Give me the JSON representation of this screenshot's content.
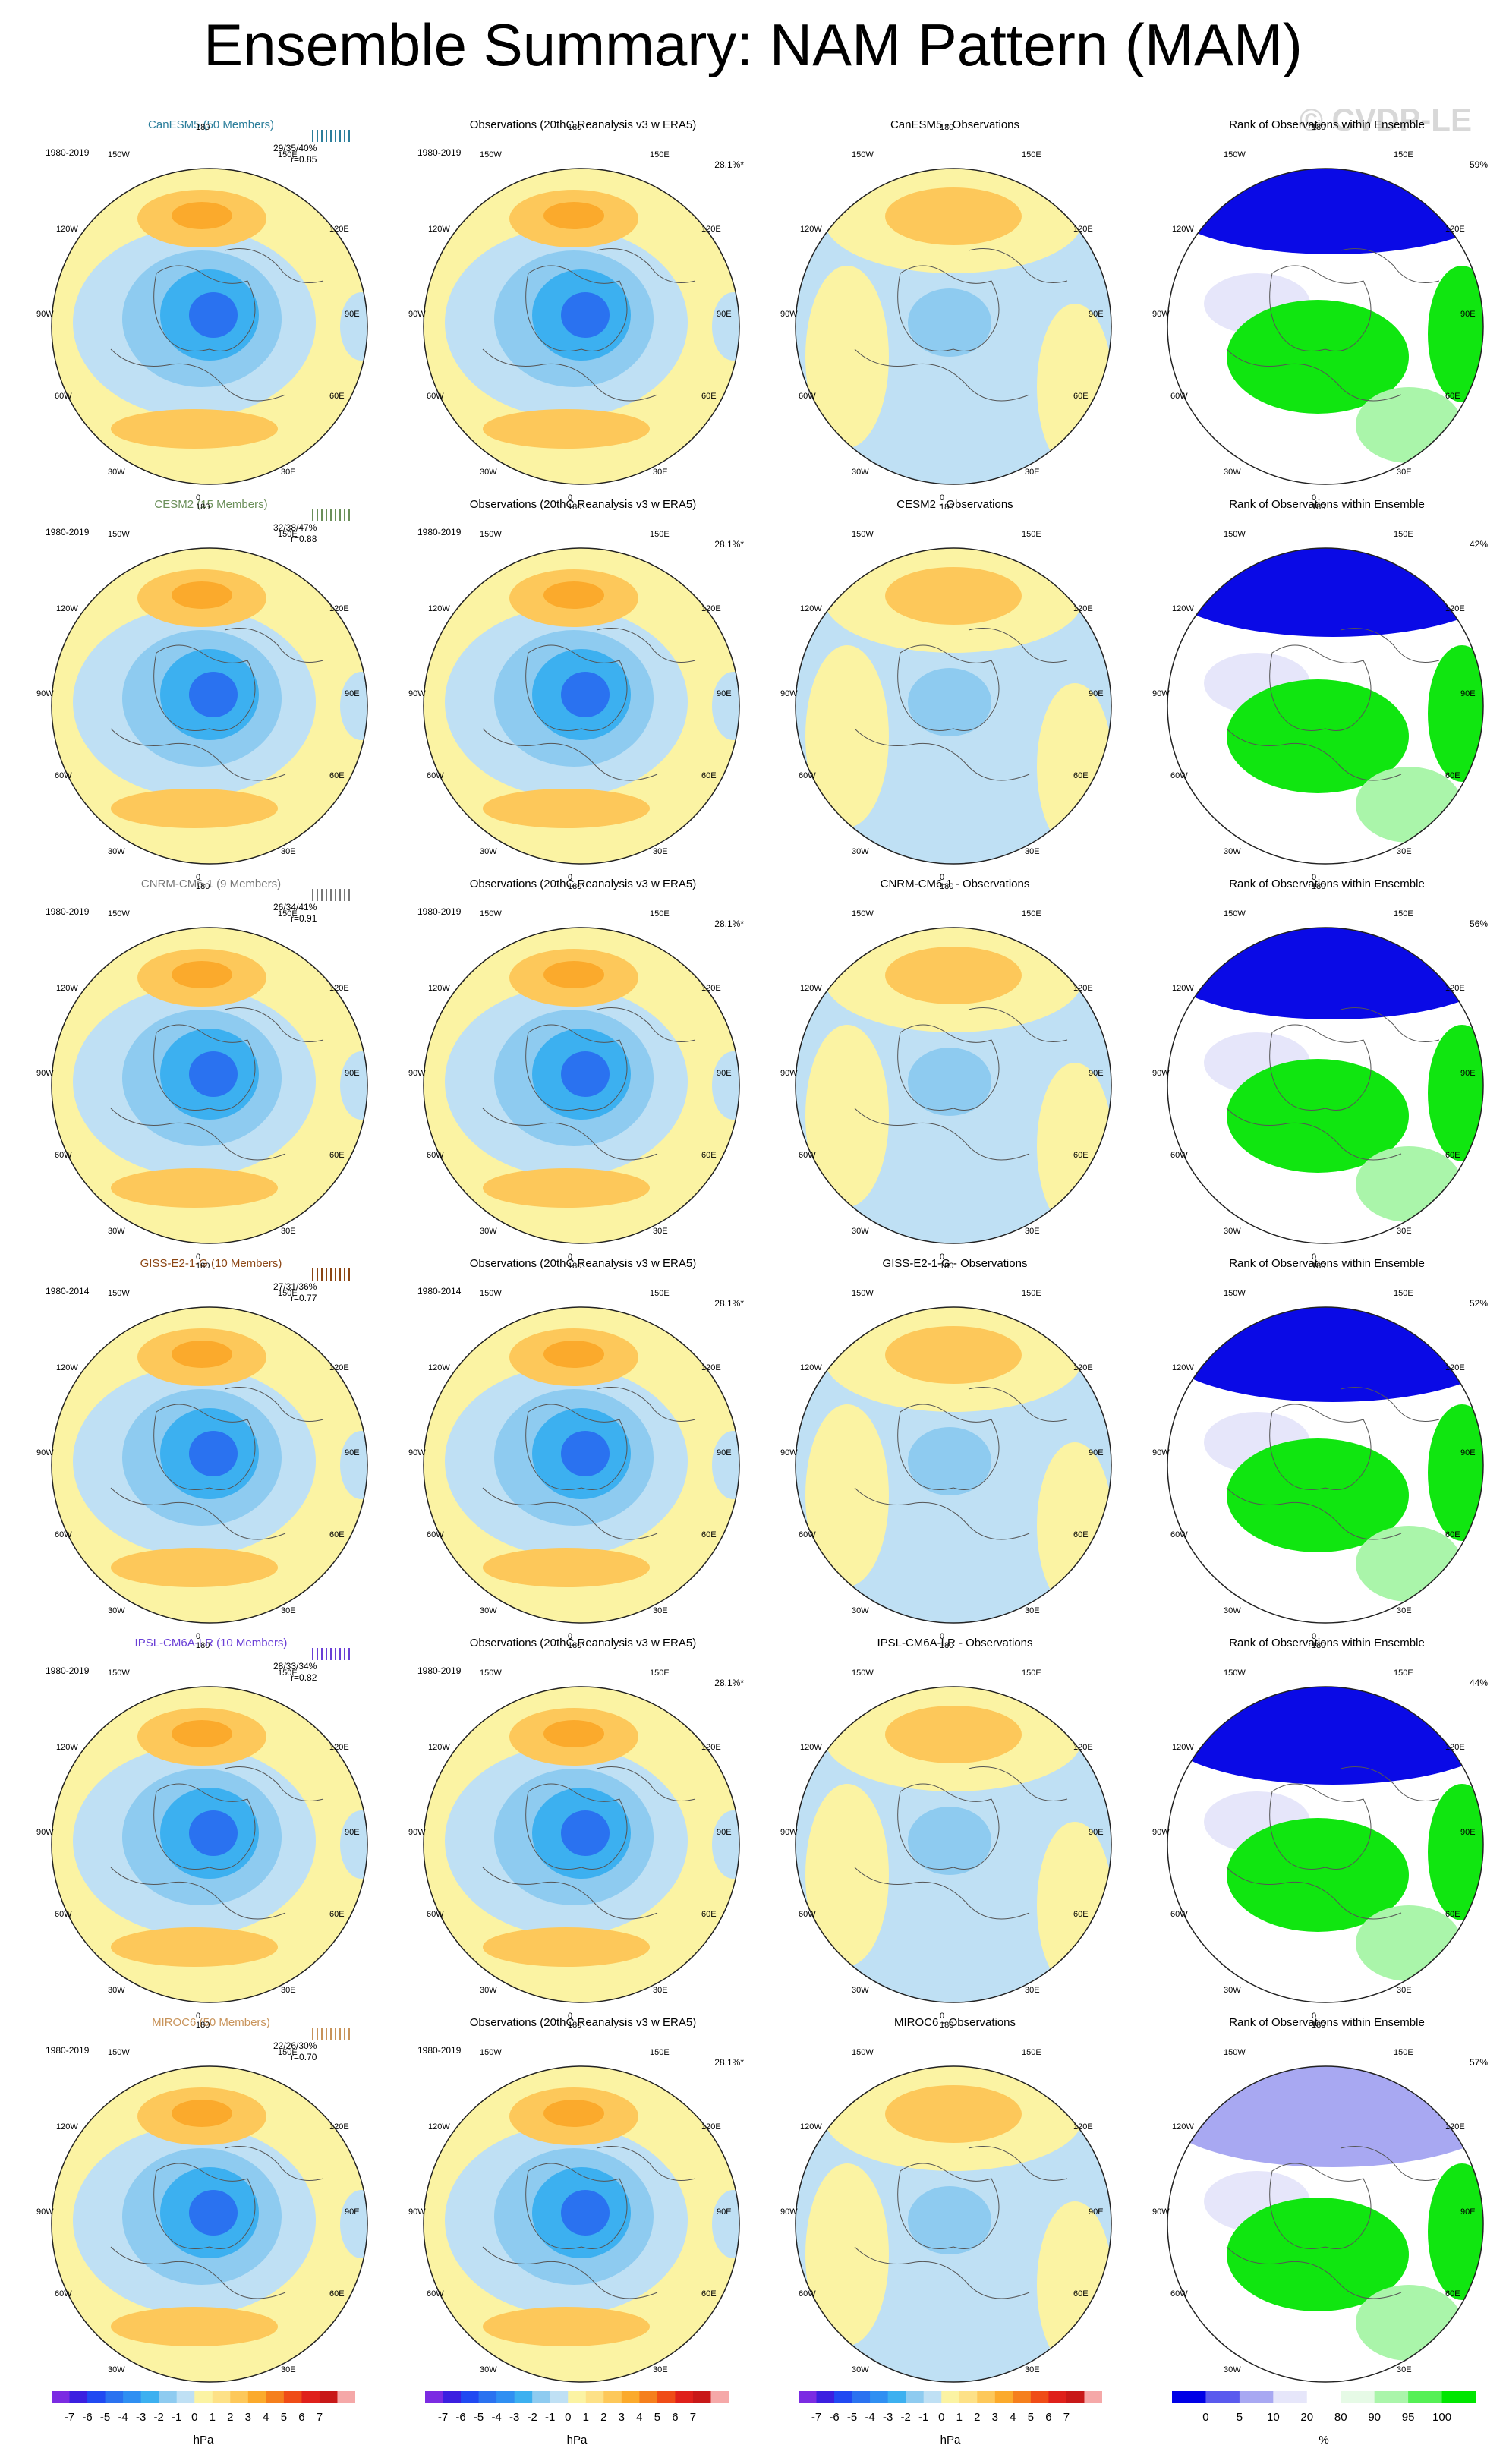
{
  "page": {
    "title": "Ensemble Summary: NAM Pattern (MAM)",
    "watermark": "© CVDP-LE"
  },
  "longitude_labels": {
    "top": "180",
    "bottom": "0",
    "upper_left": "150W",
    "upper_right": "150E",
    "mid_upper_left": "120W",
    "mid_upper_right": "120E",
    "left": "90W",
    "right": "90E",
    "mid_lower_left": "60W",
    "mid_lower_right": "60E",
    "lower_left": "30W",
    "lower_right": "30E"
  },
  "columns": [
    {
      "id": "model"
    },
    {
      "id": "obs",
      "title": "Observations (20thC Reanalysis v3 w ERA5)",
      "percent": "28.1%*"
    },
    {
      "id": "diff"
    },
    {
      "id": "rank",
      "title": "Rank of Observations within Ensemble"
    }
  ],
  "rows": [
    {
      "model_title": "CanESM5 (50 Members)",
      "title_color": "#2b7e9b",
      "period": "1980-2019",
      "obs_period": "1980-2019",
      "stats_line1": "29/35/40%",
      "stats_line2": "r=0.85",
      "diff_title": "CanESM5 - Observations",
      "rank_percent": "59%",
      "model_spread_color": "#2b7e9b"
    },
    {
      "model_title": "CESM2 (15 Members)",
      "title_color": "#6b8f5a",
      "period": "1980-2019",
      "obs_period": "1980-2019",
      "stats_line1": "32/38/47%",
      "stats_line2": "r=0.88",
      "diff_title": "CESM2 - Observations",
      "rank_percent": "42%",
      "model_spread_color": "#6b8f5a"
    },
    {
      "model_title": "CNRM-CM6-1 (9 Members)",
      "title_color": "#777777",
      "period": "1980-2019",
      "obs_period": "1980-2019",
      "stats_line1": "26/34/41%",
      "stats_line2": "r=0.91",
      "diff_title": "CNRM-CM6-1 - Observations",
      "rank_percent": "56%",
      "model_spread_color": "#777777"
    },
    {
      "model_title": "GISS-E2-1-G (10 Members)",
      "title_color": "#8b4513",
      "period": "1980-2014",
      "obs_period": "1980-2014",
      "stats_line1": "27/31/36%",
      "stats_line2": "r=0.77",
      "diff_title": "GISS-E2-1-G - Observations",
      "rank_percent": "52%",
      "model_spread_color": "#8b4513"
    },
    {
      "model_title": "IPSL-CM6A-LR (10 Members)",
      "title_color": "#6a3fd6",
      "period": "1980-2019",
      "obs_period": "1980-2019",
      "stats_line1": "28/33/34%",
      "stats_line2": "r=0.82",
      "diff_title": "IPSL-CM6A-LR - Observations",
      "rank_percent": "44%",
      "model_spread_color": "#6a3fd6"
    },
    {
      "model_title": "MIROC6 (50 Members)",
      "title_color": "#c8935a",
      "period": "1980-2019",
      "obs_period": "1980-2019",
      "stats_line1": "22/26/30%",
      "stats_line2": "r=0.70",
      "diff_title": "MIROC6 - Observations",
      "rank_percent": "57%",
      "model_spread_color": "#c8935a"
    }
  ],
  "colorbars": {
    "hpa": {
      "label": "hPa",
      "ticks": [
        "-7",
        "-6",
        "-5",
        "-4",
        "-3",
        "-2",
        "-1",
        "0",
        "1",
        "2",
        "3",
        "4",
        "5",
        "6",
        "7"
      ],
      "colors": [
        "#7b2be2",
        "#3b1fe0",
        "#2049f2",
        "#2a72f0",
        "#2f8ff2",
        "#3cb0f0",
        "#8ecbf0",
        "#bfe0f4",
        "#fbf3a3",
        "#fde187",
        "#fdc85a",
        "#fbaa2c",
        "#f57f1d",
        "#ef4c17",
        "#df201b",
        "#c81818",
        "#f5a8a8"
      ]
    },
    "rank": {
      "label": "%",
      "ticks": [
        "0",
        "5",
        "10",
        "20",
        "80",
        "90",
        "95",
        "100"
      ],
      "colors": [
        "#0000e6",
        "#5a5aee",
        "#a8a8f2",
        "#e6e6fa",
        "#ffffff",
        "#e6fae6",
        "#aaf5aa",
        "#55f055",
        "#00e600"
      ]
    }
  },
  "palette": {
    "deep_blue": "#2f8ff2",
    "light_blue": "#bfe0f4",
    "pale_yellow": "#fbf3a3",
    "orange": "#fdc85a",
    "rank_blue": "#0a0ae6",
    "rank_green": "#10e610",
    "rank_pale": "#e6e6fa"
  }
}
